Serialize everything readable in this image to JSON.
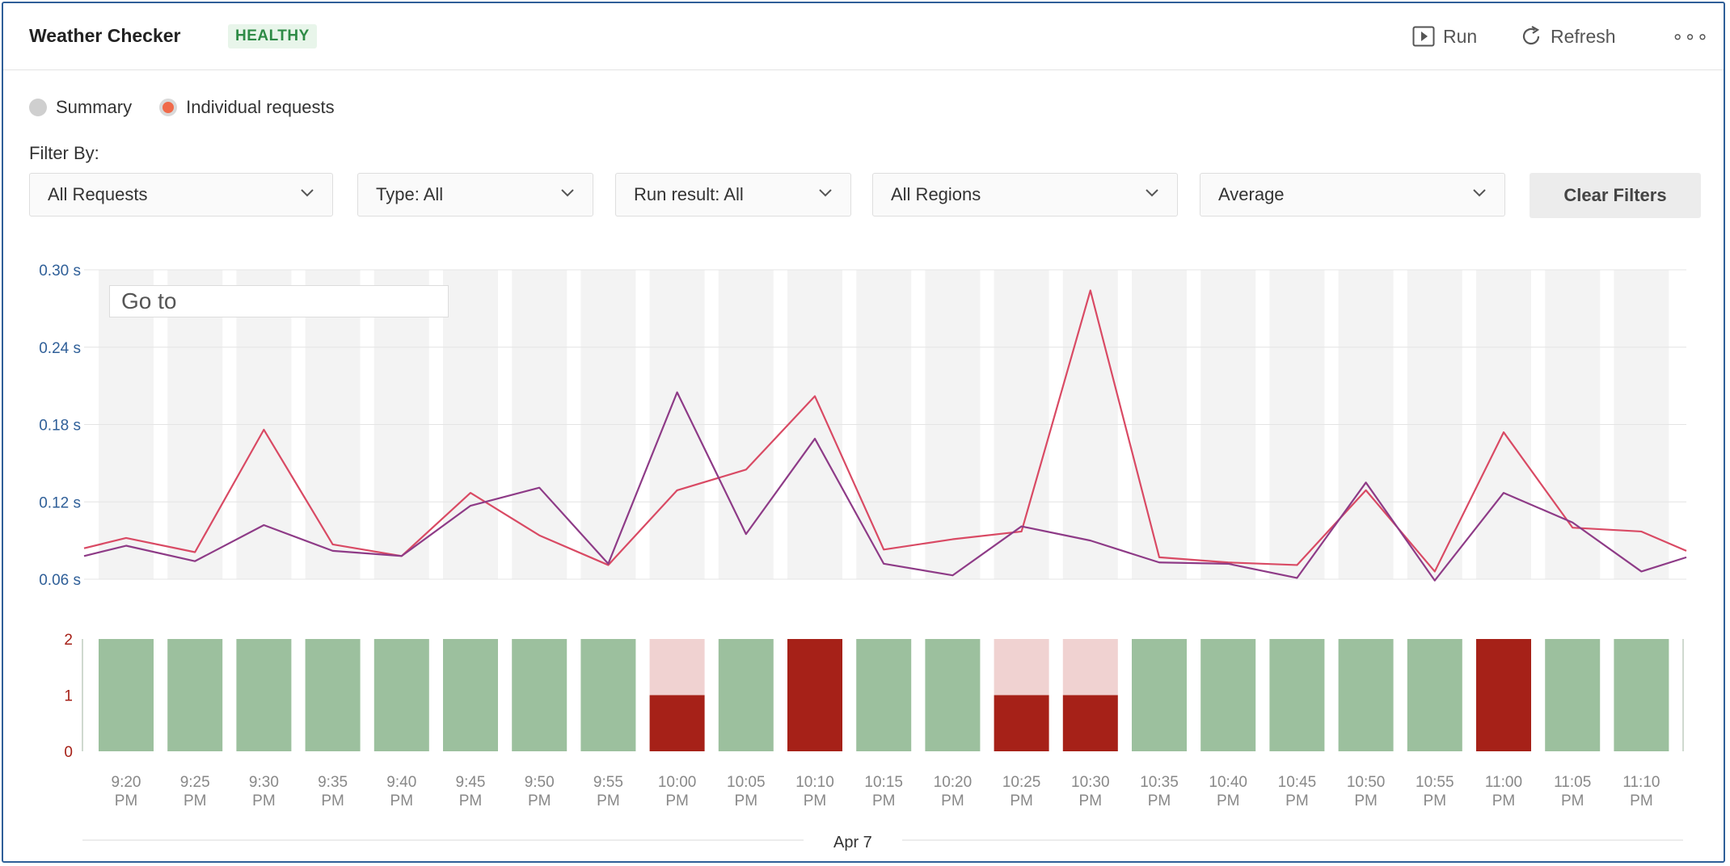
{
  "header": {
    "title": "Weather Checker",
    "status_badge": "HEALTHY",
    "run_label": "Run",
    "refresh_label": "Refresh",
    "more_label": "∘∘∘"
  },
  "view_mode": {
    "summary_label": "Summary",
    "individual_label": "Individual requests",
    "selected": "individual"
  },
  "filters": {
    "label": "Filter By:",
    "requests": "All Requests",
    "type": "Type: All",
    "run_result": "Run result: All",
    "regions": "All Regions",
    "aggregation": "Average",
    "clear_label": "Clear Filters"
  },
  "goto_placeholder": "Go to",
  "colors": {
    "line_a": "#d94a64",
    "line_b": "#8e3b87",
    "success": "#9cc09e",
    "failure": "#a62118",
    "failure_light": "#f0d2d1",
    "accent": "#f06a4a",
    "badge_green": "#2e8b46"
  },
  "chart_data": [
    {
      "type": "line",
      "x": [
        "9:20 PM",
        "9:25 PM",
        "9:30 PM",
        "9:35 PM",
        "9:40 PM",
        "9:45 PM",
        "9:50 PM",
        "9:55 PM",
        "10:00 PM",
        "10:05 PM",
        "10:10 PM",
        "10:15 PM",
        "10:20 PM",
        "10:25 PM",
        "10:30 PM",
        "10:35 PM",
        "10:40 PM",
        "10:45 PM",
        "10:50 PM",
        "10:55 PM",
        "11:00 PM",
        "11:05 PM",
        "11:10 PM"
      ],
      "series": [
        {
          "values": [
            0.092,
            0.081,
            0.176,
            0.087,
            0.078,
            0.127,
            0.094,
            0.071,
            0.129,
            0.145,
            0.202,
            0.083,
            0.091,
            0.097,
            0.284,
            0.077,
            0.073,
            0.071,
            0.129,
            0.066,
            0.174,
            0.1,
            0.097
          ]
        },
        {
          "values": [
            0.086,
            0.074,
            0.102,
            0.082,
            0.078,
            0.117,
            0.131,
            0.072,
            0.205,
            0.095,
            0.169,
            0.072,
            0.063,
            0.101,
            0.09,
            0.073,
            0.072,
            0.061,
            0.135,
            0.059,
            0.127,
            0.104,
            0.066
          ]
        }
      ],
      "y_ticks": [
        "0.30 s",
        "0.24 s",
        "0.18 s",
        "0.12 s",
        "0.06 s"
      ],
      "y_tick_values": [
        0.3,
        0.24,
        0.18,
        0.12,
        0.06
      ],
      "ylim": [
        0.06,
        0.3
      ],
      "x_edges": {
        "left": 0.084,
        "right": 0.082
      }
    },
    {
      "type": "bar",
      "stacked": true,
      "categories": [
        "9:20 PM",
        "9:25 PM",
        "9:30 PM",
        "9:35 PM",
        "9:40 PM",
        "9:45 PM",
        "9:50 PM",
        "9:55 PM",
        "10:00 PM",
        "10:05 PM",
        "10:10 PM",
        "10:15 PM",
        "10:20 PM",
        "10:25 PM",
        "10:30 PM",
        "10:35 PM",
        "10:40 PM",
        "10:45 PM",
        "10:50 PM",
        "10:55 PM",
        "11:00 PM",
        "11:05 PM",
        "11:10 PM"
      ],
      "series": [
        {
          "name": "success",
          "values": [
            2,
            2,
            2,
            2,
            2,
            2,
            2,
            2,
            0,
            2,
            0,
            2,
            2,
            0,
            0,
            2,
            2,
            2,
            2,
            2,
            0,
            2,
            2
          ]
        },
        {
          "name": "failure",
          "values": [
            0,
            0,
            0,
            0,
            0,
            0,
            0,
            0,
            1,
            0,
            2,
            0,
            0,
            1,
            1,
            0,
            0,
            0,
            0,
            0,
            2,
            0,
            0
          ]
        },
        {
          "name": "partial",
          "values": [
            0,
            0,
            0,
            0,
            0,
            0,
            0,
            0,
            1,
            0,
            0,
            0,
            0,
            1,
            1,
            0,
            0,
            0,
            0,
            0,
            0,
            0,
            0
          ]
        }
      ],
      "y_ticks": [
        "2",
        "1",
        "0"
      ],
      "y_tick_values": [
        2,
        1,
        0
      ],
      "ylim": [
        0,
        2
      ],
      "x_tick_lines": [
        [
          "9:20",
          "PM"
        ],
        [
          "9:25",
          "PM"
        ],
        [
          "9:30",
          "PM"
        ],
        [
          "9:35",
          "PM"
        ],
        [
          "9:40",
          "PM"
        ],
        [
          "9:45",
          "PM"
        ],
        [
          "9:50",
          "PM"
        ],
        [
          "9:55",
          "PM"
        ],
        [
          "10:00",
          "PM"
        ],
        [
          "10:05",
          "PM"
        ],
        [
          "10:10",
          "PM"
        ],
        [
          "10:15",
          "PM"
        ],
        [
          "10:20",
          "PM"
        ],
        [
          "10:25",
          "PM"
        ],
        [
          "10:30",
          "PM"
        ],
        [
          "10:35",
          "PM"
        ],
        [
          "10:40",
          "PM"
        ],
        [
          "10:45",
          "PM"
        ],
        [
          "10:50",
          "PM"
        ],
        [
          "10:55",
          "PM"
        ],
        [
          "11:00",
          "PM"
        ],
        [
          "11:05",
          "PM"
        ],
        [
          "11:10",
          "PM"
        ]
      ],
      "date_label": "Apr 7"
    }
  ]
}
